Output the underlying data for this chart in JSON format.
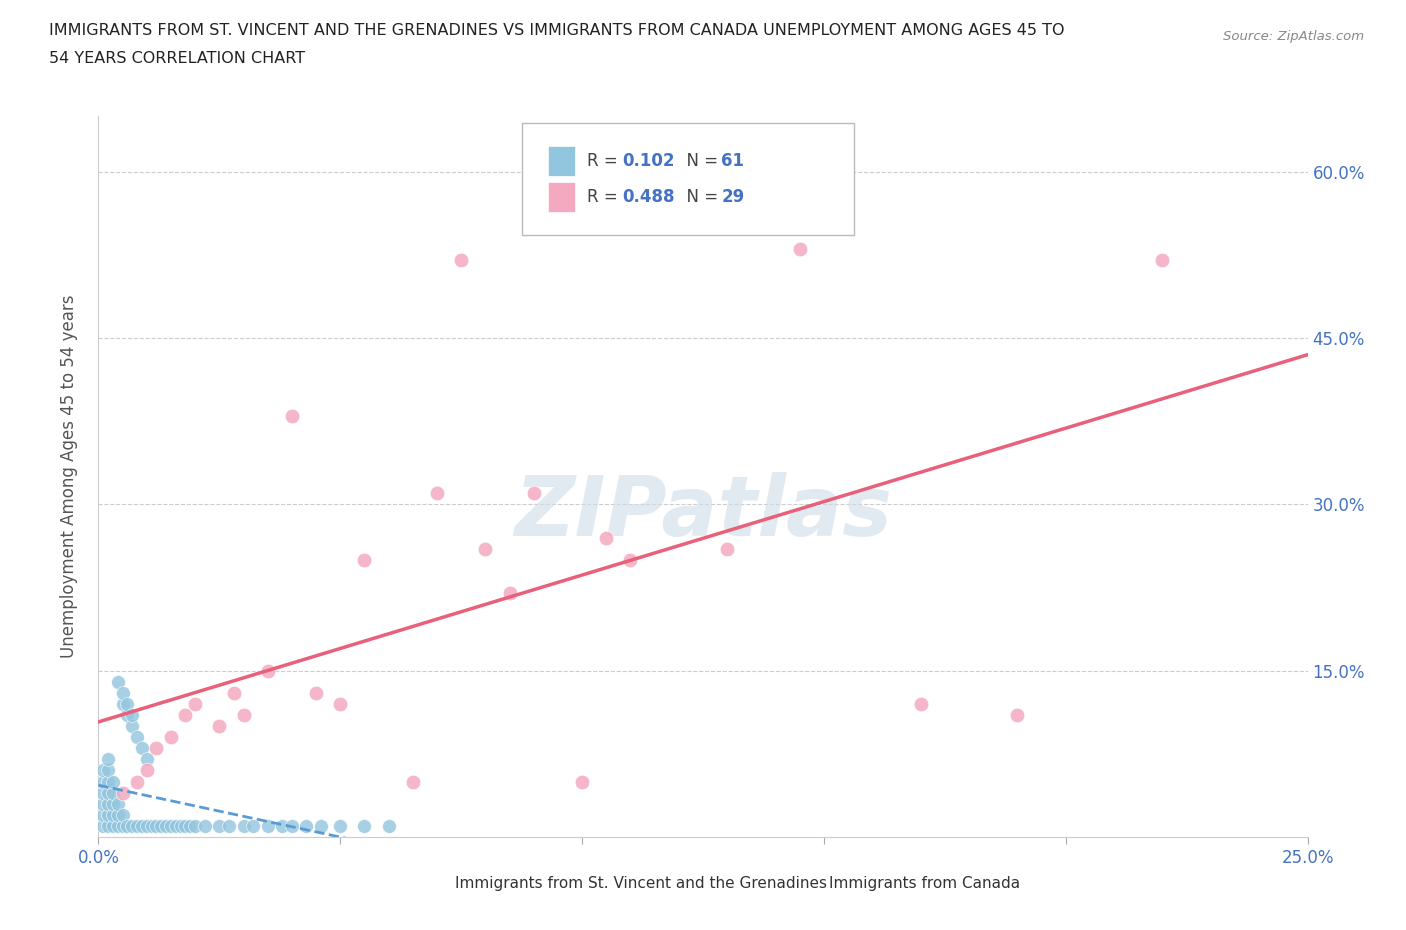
{
  "title_line1": "IMMIGRANTS FROM ST. VINCENT AND THE GRENADINES VS IMMIGRANTS FROM CANADA UNEMPLOYMENT AMONG AGES 45 TO",
  "title_line2": "54 YEARS CORRELATION CHART",
  "source": "Source: ZipAtlas.com",
  "ylabel": "Unemployment Among Ages 45 to 54 years",
  "xlim": [
    0.0,
    0.25
  ],
  "ylim": [
    0.0,
    0.65
  ],
  "blue_color": "#92c5de",
  "pink_color": "#f4a9c0",
  "blue_line_color": "#5b9bd5",
  "pink_line_color": "#e8607a",
  "grid_color": "#cccccc",
  "background_color": "#ffffff",
  "blue_x": [
    0.001,
    0.001,
    0.001,
    0.001,
    0.001,
    0.001,
    0.002,
    0.002,
    0.002,
    0.002,
    0.002,
    0.002,
    0.002,
    0.003,
    0.003,
    0.003,
    0.003,
    0.003,
    0.004,
    0.004,
    0.004,
    0.004,
    0.005,
    0.005,
    0.005,
    0.005,
    0.006,
    0.006,
    0.006,
    0.007,
    0.007,
    0.007,
    0.008,
    0.008,
    0.009,
    0.009,
    0.01,
    0.01,
    0.011,
    0.012,
    0.013,
    0.014,
    0.015,
    0.016,
    0.017,
    0.018,
    0.019,
    0.02,
    0.022,
    0.025,
    0.027,
    0.03,
    0.032,
    0.035,
    0.038,
    0.04,
    0.043,
    0.046,
    0.05,
    0.055,
    0.06
  ],
  "blue_y": [
    0.01,
    0.02,
    0.03,
    0.04,
    0.05,
    0.06,
    0.01,
    0.02,
    0.03,
    0.04,
    0.05,
    0.06,
    0.07,
    0.01,
    0.02,
    0.03,
    0.04,
    0.05,
    0.01,
    0.02,
    0.03,
    0.14,
    0.01,
    0.02,
    0.12,
    0.13,
    0.01,
    0.11,
    0.12,
    0.01,
    0.1,
    0.11,
    0.01,
    0.09,
    0.01,
    0.08,
    0.01,
    0.07,
    0.01,
    0.01,
    0.01,
    0.01,
    0.01,
    0.01,
    0.01,
    0.01,
    0.01,
    0.01,
    0.01,
    0.01,
    0.01,
    0.01,
    0.01,
    0.01,
    0.01,
    0.01,
    0.01,
    0.01,
    0.01,
    0.01,
    0.01
  ],
  "pink_x": [
    0.005,
    0.008,
    0.01,
    0.012,
    0.015,
    0.018,
    0.02,
    0.025,
    0.028,
    0.03,
    0.035,
    0.04,
    0.045,
    0.05,
    0.055,
    0.065,
    0.07,
    0.075,
    0.08,
    0.085,
    0.09,
    0.1,
    0.105,
    0.11,
    0.13,
    0.145,
    0.17,
    0.19,
    0.22
  ],
  "pink_y": [
    0.04,
    0.05,
    0.06,
    0.08,
    0.09,
    0.11,
    0.12,
    0.1,
    0.13,
    0.11,
    0.15,
    0.38,
    0.13,
    0.12,
    0.25,
    0.05,
    0.31,
    0.52,
    0.26,
    0.22,
    0.31,
    0.05,
    0.27,
    0.25,
    0.26,
    0.53,
    0.12,
    0.11,
    0.52
  ],
  "watermark_text": "ZIPatlas",
  "legend_r1": "0.102",
  "legend_n1": "61",
  "legend_r2": "0.488",
  "legend_n2": "29"
}
